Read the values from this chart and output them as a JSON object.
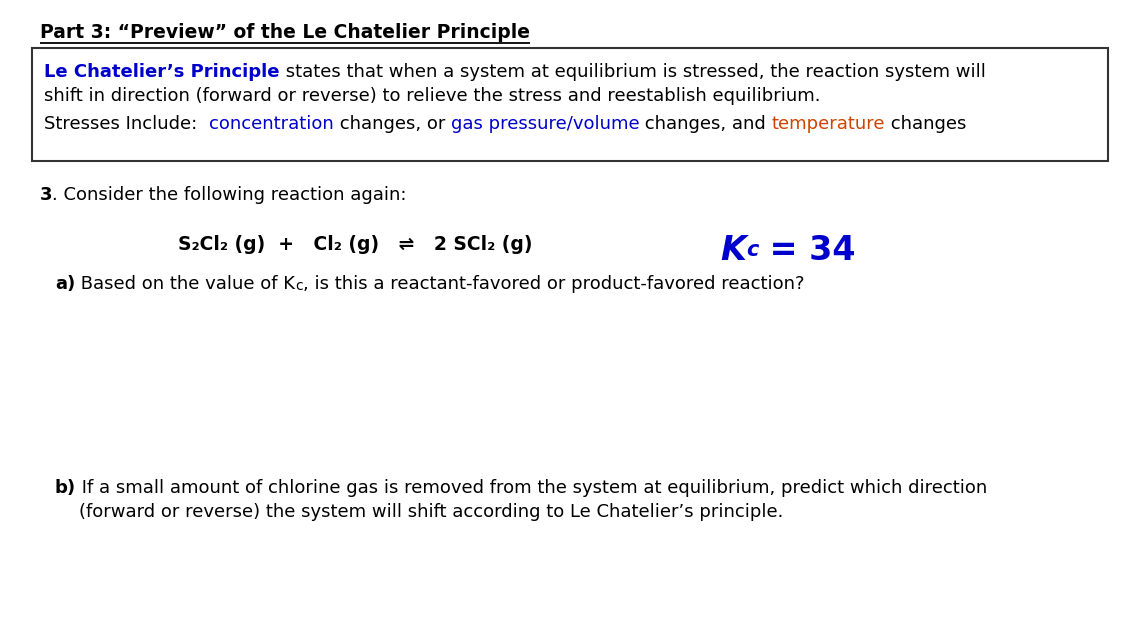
{
  "bg_color": "#ffffff",
  "title": "Part 3: “Preview” of the Le Chatelier Principle",
  "box_line1_parts": [
    {
      "text": "Le Chatelier’s Principle",
      "color": "#0000cc",
      "bold": true
    },
    {
      "text": " states that when a system at equilibrium is stressed, the reaction system will",
      "color": "#000000",
      "bold": false
    }
  ],
  "box_line2": "shift in direction (forward or reverse) to relieve the stress and reestablish equilibrium.",
  "box_line3_parts": [
    {
      "text": "Stresses Include:  ",
      "color": "#000000",
      "bold": false
    },
    {
      "text": "concentration",
      "color": "#0000cc",
      "bold": false
    },
    {
      "text": " changes, or ",
      "color": "#000000",
      "bold": false
    },
    {
      "text": "gas pressure/volume",
      "color": "#0000cc",
      "bold": false
    },
    {
      "text": " changes, and ",
      "color": "#000000",
      "bold": false
    },
    {
      "text": "temperature",
      "color": "#cc4400",
      "bold": false
    },
    {
      "text": " changes",
      "color": "#000000",
      "bold": false
    }
  ],
  "title_fontsize": 13.5,
  "body_fontsize": 13.0,
  "reaction_fontsize": 13.5,
  "kc_fontsize": 24,
  "kc_sub_fontsize": 15
}
